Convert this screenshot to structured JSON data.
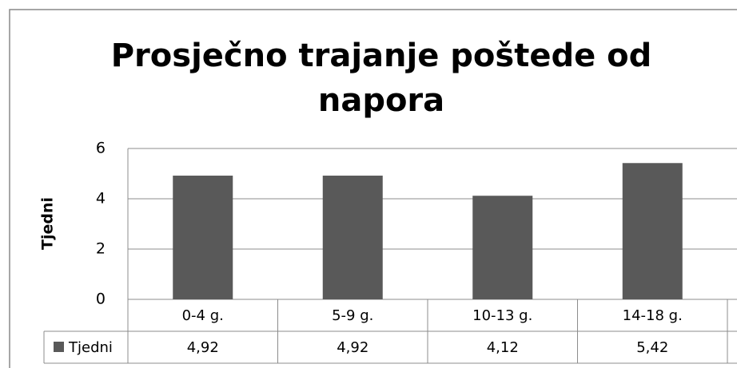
{
  "chart_data": {
    "type": "bar",
    "title": "Prosječno trajanje poštede od napora",
    "y_label": "Tjedni",
    "categories": [
      "0-4 g.",
      "5-9 g.",
      "10-13 g.",
      "14-18 g."
    ],
    "series": [
      {
        "name": "Tjedni",
        "color": "#595959",
        "values": [
          4.92,
          4.92,
          4.12,
          5.42
        ],
        "value_labels": [
          "4,92",
          "4,92",
          "4,12",
          "5,42"
        ]
      }
    ],
    "ylim": [
      0,
      6
    ],
    "yticks": [
      0,
      2,
      4,
      6
    ],
    "grid": true,
    "data_table": true
  }
}
